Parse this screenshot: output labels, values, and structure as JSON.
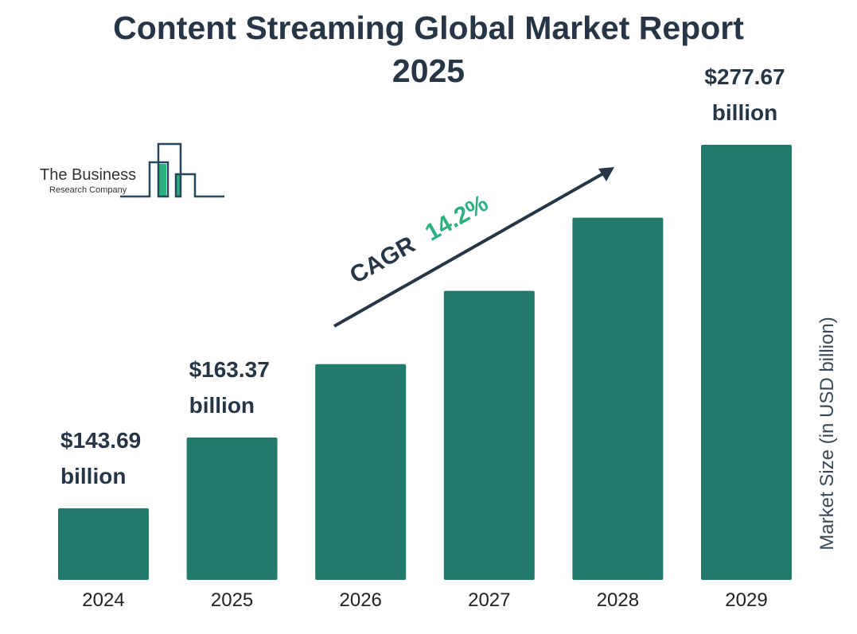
{
  "chart_data": {
    "type": "bar",
    "title": "Content Streaming Global Market Report 2025",
    "title_lines": [
      "Content Streaming Global Market Report",
      "2025"
    ],
    "ylabel": "Market Size (in USD billion)",
    "xlabel": "",
    "y_scale": "log",
    "grid": false,
    "legend": "none",
    "categories": [
      "2024",
      "2025",
      "2026",
      "2027",
      "2028",
      "2029"
    ],
    "values": [
      143.69,
      163.37,
      186.6,
      213.1,
      243.3,
      277.67
    ],
    "data_labels": [
      {
        "index": 0,
        "value": "$143.69",
        "unit": "billion"
      },
      {
        "index": 1,
        "value": "$163.37",
        "unit": "billion"
      },
      {
        "index": 5,
        "value": "$277.67",
        "unit": "billion"
      }
    ],
    "annotation": {
      "label": "CAGR",
      "value": "14.2%"
    },
    "colors": {
      "bar": "#217a6b",
      "text": "#263646",
      "cagr": "#2bb07f"
    }
  },
  "logo": {
    "line1": "The Business",
    "line2": "Research Company"
  }
}
